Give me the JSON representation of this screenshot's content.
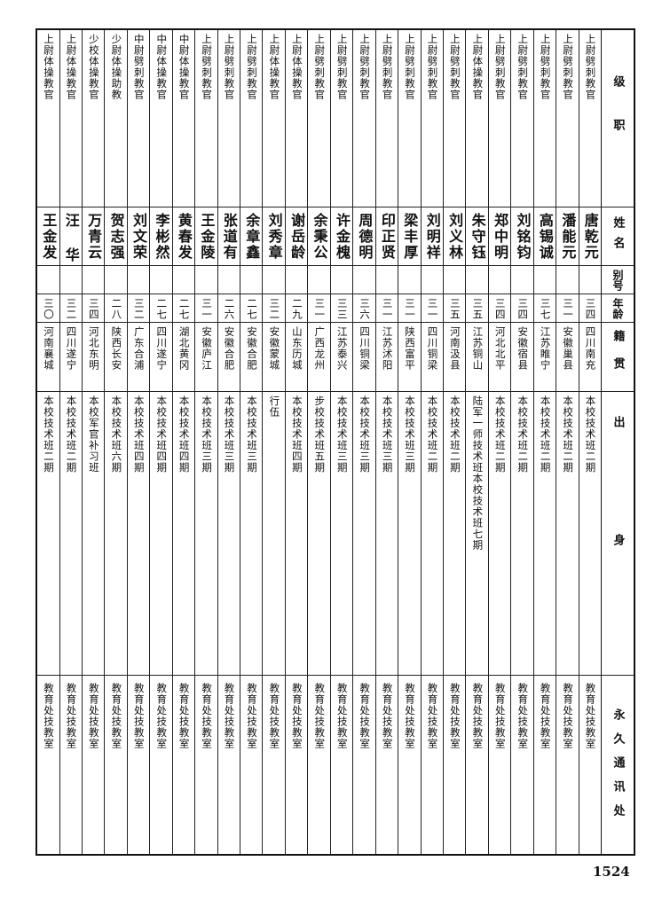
{
  "headers": {
    "rank": "级职",
    "name": "姓名",
    "alias": "别号",
    "age": "年龄",
    "native_place": "籍贯",
    "background": "出身",
    "address": "永久通讯处"
  },
  "rows": [
    {
      "rank": "上尉劈刺教官",
      "name": "唐乾元",
      "alias": "",
      "age": "三四",
      "native_place": "四川南充",
      "background": "本校技术班二期",
      "address": "教育处技教室"
    },
    {
      "rank": "上尉劈刺教官",
      "name": "潘能元",
      "alias": "",
      "age": "三一",
      "native_place": "安徽巢县",
      "background": "本校技术班二期",
      "address": "教育处技教室"
    },
    {
      "rank": "上尉劈刺教官",
      "name": "高锡诚",
      "alias": "",
      "age": "三七",
      "native_place": "江苏睢宁",
      "background": "本校技术班二期",
      "address": "教育处技教室"
    },
    {
      "rank": "上尉劈刺教官",
      "name": "刘铭钧",
      "alias": "",
      "age": "三四",
      "native_place": "安徽宿县",
      "background": "本校技术班二期",
      "address": "教育处技教室"
    },
    {
      "rank": "上尉劈刺教官",
      "name": "郑中明",
      "alias": "",
      "age": "三四",
      "native_place": "河北北平",
      "background": "本校技术班二期",
      "address": "教育处技教室"
    },
    {
      "rank": "上尉体操教官",
      "name": "朱守钰",
      "alias": "",
      "age": "三五",
      "native_place": "江苏铜山",
      "background": "陆军一师技术班本校技术班七期",
      "address": "教育处技教室"
    },
    {
      "rank": "上尉劈刺教官",
      "name": "刘义林",
      "alias": "",
      "age": "三五",
      "native_place": "河南汲县",
      "background": "本校技术班二期",
      "address": "教育处技教室"
    },
    {
      "rank": "上尉劈刺教官",
      "name": "刘明祥",
      "alias": "",
      "age": "三一",
      "native_place": "四川铜梁",
      "background": "本校技术班二期",
      "address": "教育处技教室"
    },
    {
      "rank": "上尉劈刺教官",
      "name": "梁丰厚",
      "alias": "",
      "age": "三一",
      "native_place": "陕西富平",
      "background": "本校技术班三期",
      "address": "教育处技教室"
    },
    {
      "rank": "上尉劈刺教官",
      "name": "印正贤",
      "alias": "",
      "age": "三一",
      "native_place": "江苏沭阳",
      "background": "本校技术班三期",
      "address": "教育处技教室"
    },
    {
      "rank": "上尉劈刺教官",
      "name": "周德明",
      "alias": "",
      "age": "三六",
      "native_place": "四川铜梁",
      "background": "本校技术班三期",
      "address": "教育处技教室"
    },
    {
      "rank": "上尉劈刺教官",
      "name": "许金槐",
      "alias": "",
      "age": "三三",
      "native_place": "江苏泰兴",
      "background": "本校技术班三期",
      "address": "教育处技教室"
    },
    {
      "rank": "上尉劈刺教官",
      "name": "余秉公",
      "alias": "",
      "age": "三一",
      "native_place": "广西龙州",
      "background": "步校技术班五期",
      "address": "教育处技教室"
    },
    {
      "rank": "上尉体操教官",
      "name": "谢岳龄",
      "alias": "",
      "age": "二九",
      "native_place": "山东历城",
      "background": "本校技术班四期",
      "address": "教育处技教室"
    },
    {
      "rank": "上尉体操教官",
      "name": "刘秀章",
      "alias": "",
      "age": "三二",
      "native_place": "安徽蒙城",
      "background": "行伍",
      "address": "教育处技教室"
    },
    {
      "rank": "上尉劈刺教官",
      "name": "余章鑫",
      "alias": "",
      "age": "二七",
      "native_place": "安徽合肥",
      "background": "本校技术班三期",
      "address": "教育处技教室"
    },
    {
      "rank": "上尉劈刺教官",
      "name": "张道有",
      "alias": "",
      "age": "二六",
      "native_place": "安徽合肥",
      "background": "本校技术班三期",
      "address": "教育处技教室"
    },
    {
      "rank": "上尉劈刺教官",
      "name": "王金陵",
      "alias": "",
      "age": "三一",
      "native_place": "安徽庐江",
      "background": "本校技术班三期",
      "address": "教育处技教室"
    },
    {
      "rank": "中尉体操教官",
      "name": "黄春发",
      "alias": "",
      "age": "二七",
      "native_place": "湖北黄冈",
      "background": "本校技术班四期",
      "address": "教育处技教室"
    },
    {
      "rank": "中尉体操教官",
      "name": "李彬然",
      "alias": "",
      "age": "二七",
      "native_place": "四川遂宁",
      "background": "本校技术班四期",
      "address": "教育处技教室"
    },
    {
      "rank": "中尉劈刺教官",
      "name": "刘文荣",
      "alias": "",
      "age": "三二",
      "native_place": "广东合浦",
      "background": "本校技术班四期",
      "address": "教育处技教室"
    },
    {
      "rank": "少尉体操助教",
      "name": "贺志强",
      "alias": "",
      "age": "二八",
      "native_place": "陕西长安",
      "background": "本校技术班六期",
      "address": "教育处技教室"
    },
    {
      "rank": "少校体操教官",
      "name": "万青云",
      "alias": "",
      "age": "三四",
      "native_place": "河北东明",
      "background": "本校军官补习班",
      "address": "教育处技教室"
    },
    {
      "rank": "上尉体操教官",
      "name": "汪 华",
      "alias": "",
      "age": "三二",
      "native_place": "四川遂宁",
      "background": "本校技术班二期",
      "address": "教育处技教室"
    },
    {
      "rank": "上尉体操教官",
      "name": "王金发",
      "alias": "",
      "age": "三〇",
      "native_place": "河南襄城",
      "background": "本校技术班二期",
      "address": "教育处技教室"
    }
  ],
  "page_number": "1524"
}
